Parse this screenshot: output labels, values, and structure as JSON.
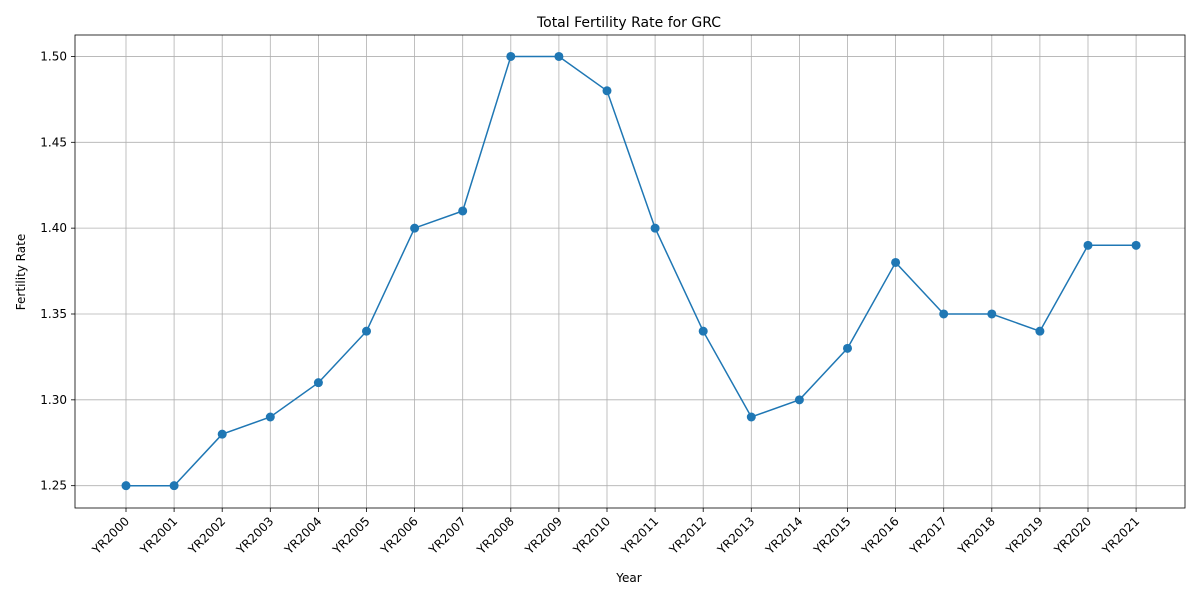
{
  "chart_data": {
    "type": "line",
    "title": "Total Fertility Rate for GRC",
    "xlabel": "Year",
    "ylabel": "Fertility Rate",
    "categories": [
      "YR2000",
      "YR2001",
      "YR2002",
      "YR2003",
      "YR2004",
      "YR2005",
      "YR2006",
      "YR2007",
      "YR2008",
      "YR2009",
      "YR2010",
      "YR2011",
      "YR2012",
      "YR2013",
      "YR2014",
      "YR2015",
      "YR2016",
      "YR2017",
      "YR2018",
      "YR2019",
      "YR2020",
      "YR2021"
    ],
    "values": [
      1.25,
      1.25,
      1.28,
      1.29,
      1.31,
      1.34,
      1.4,
      1.41,
      1.5,
      1.5,
      1.48,
      1.4,
      1.34,
      1.29,
      1.3,
      1.33,
      1.38,
      1.35,
      1.35,
      1.34,
      1.39,
      1.39
    ],
    "yticks": [
      "1.25",
      "1.30",
      "1.35",
      "1.40",
      "1.45",
      "1.50"
    ],
    "ylim": [
      1.237,
      1.5125
    ],
    "grid": true,
    "line_color": "#1f77b4",
    "marker": "circle"
  }
}
